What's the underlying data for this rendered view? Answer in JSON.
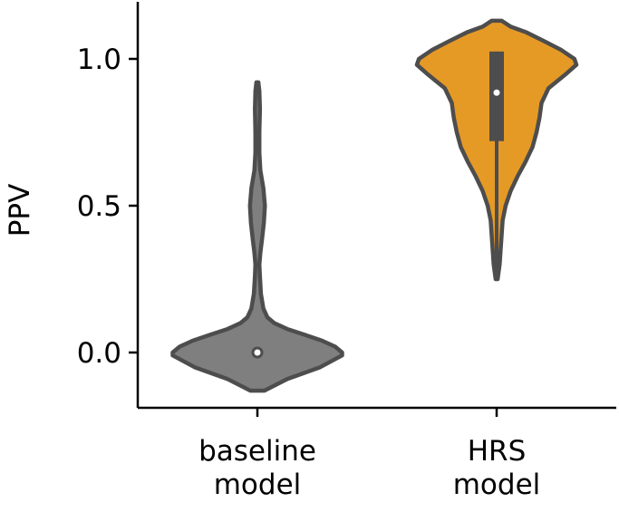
{
  "chart_data": {
    "type": "violin",
    "title": "",
    "xlabel": "",
    "ylabel": "PPV",
    "ylim": [
      -0.2,
      1.2
    ],
    "yticks": [
      0.0,
      0.5,
      1.0
    ],
    "ytick_labels": [
      "0.0",
      "0.5",
      "1.0"
    ],
    "grid": false,
    "categories": [
      {
        "label_lines": [
          "baseline",
          "model"
        ],
        "color": "#7f7f7f",
        "median": 0.0,
        "q1": 0.0,
        "q3": 0.0,
        "min": -0.13,
        "max": 0.92,
        "density_profile": [
          [
            -0.13,
            0.07
          ],
          [
            -0.09,
            0.3
          ],
          [
            -0.05,
            0.63
          ],
          [
            -0.01,
            0.85
          ],
          [
            0.0,
            0.85
          ],
          [
            0.02,
            0.78
          ],
          [
            0.04,
            0.65
          ],
          [
            0.06,
            0.48
          ],
          [
            0.08,
            0.3
          ],
          [
            0.1,
            0.17
          ],
          [
            0.12,
            0.1
          ],
          [
            0.15,
            0.06
          ],
          [
            0.2,
            0.035
          ],
          [
            0.26,
            0.025
          ],
          [
            0.3,
            0.02
          ],
          [
            0.34,
            0.03
          ],
          [
            0.38,
            0.045
          ],
          [
            0.44,
            0.065
          ],
          [
            0.5,
            0.075
          ],
          [
            0.56,
            0.06
          ],
          [
            0.62,
            0.03
          ],
          [
            0.68,
            0.02
          ],
          [
            0.75,
            0.02
          ],
          [
            0.83,
            0.025
          ],
          [
            0.89,
            0.02
          ],
          [
            0.92,
            0.01
          ]
        ]
      },
      {
        "label_lines": [
          "HRS",
          "model"
        ],
        "color": "#e69a26",
        "median": 0.885,
        "q1": 0.72,
        "q3": 1.025,
        "min": 0.25,
        "max": 1.13,
        "density_profile": [
          [
            0.25,
            0.01
          ],
          [
            0.3,
            0.03
          ],
          [
            0.35,
            0.04
          ],
          [
            0.4,
            0.05
          ],
          [
            0.45,
            0.06
          ],
          [
            0.5,
            0.09
          ],
          [
            0.55,
            0.14
          ],
          [
            0.6,
            0.21
          ],
          [
            0.65,
            0.29
          ],
          [
            0.7,
            0.36
          ],
          [
            0.75,
            0.4
          ],
          [
            0.8,
            0.43
          ],
          [
            0.85,
            0.45
          ],
          [
            0.9,
            0.52
          ],
          [
            0.95,
            0.7
          ],
          [
            0.98,
            0.8
          ],
          [
            1.0,
            0.78
          ],
          [
            1.03,
            0.65
          ],
          [
            1.06,
            0.48
          ],
          [
            1.09,
            0.3
          ],
          [
            1.11,
            0.14
          ],
          [
            1.13,
            0.05
          ]
        ]
      }
    ]
  }
}
